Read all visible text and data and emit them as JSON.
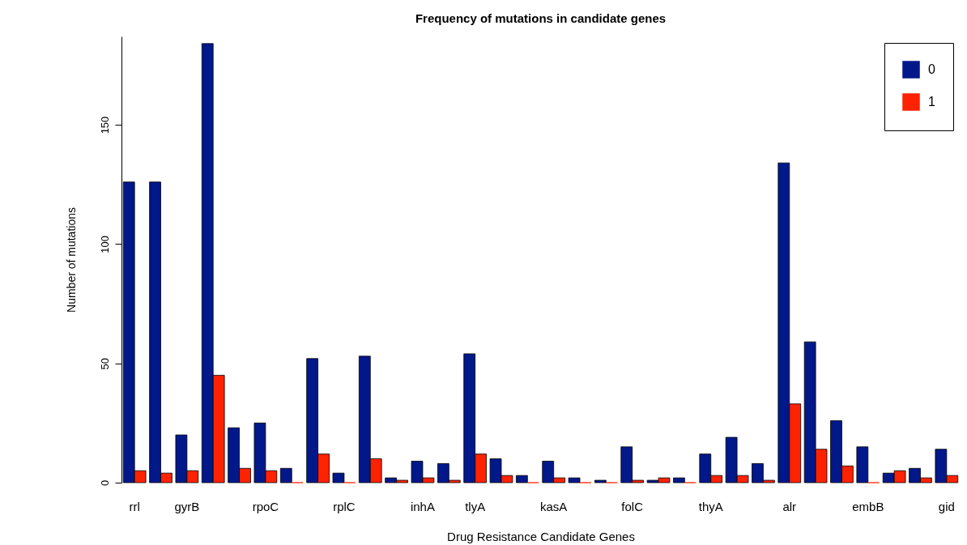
{
  "chart_data": {
    "type": "bar",
    "title": "Frequency of mutations in candidate genes",
    "xlabel": "Drug Resistance Candidate Genes",
    "ylabel": "Number of mutations",
    "categories": [
      "rrl",
      null,
      "gyrB",
      null,
      null,
      "rpoC",
      null,
      null,
      "rplC",
      null,
      null,
      "inhA",
      null,
      "tlyA",
      null,
      null,
      "kasA",
      null,
      null,
      "folC",
      null,
      null,
      "thyA",
      null,
      null,
      "alr",
      null,
      null,
      "embB",
      null,
      null,
      "gid"
    ],
    "series": [
      {
        "name": "0",
        "color": "#00188a",
        "values": [
          126,
          126,
          20,
          184,
          23,
          25,
          6,
          52,
          4,
          53,
          2,
          9,
          8,
          54,
          10,
          3,
          9,
          2,
          1,
          15,
          1,
          2,
          12,
          19,
          8,
          134,
          59,
          26,
          15,
          4,
          6,
          14
        ]
      },
      {
        "name": "1",
        "color": "#ff2200",
        "values": [
          5,
          4,
          5,
          45,
          6,
          5,
          0,
          12,
          0,
          10,
          1,
          2,
          1,
          12,
          3,
          0,
          2,
          0,
          0,
          1,
          2,
          0,
          3,
          3,
          1,
          33,
          14,
          7,
          0,
          5,
          2,
          3
        ]
      }
    ],
    "ylim": [
      0,
      187
    ],
    "yticks": [
      0,
      50,
      100,
      150
    ],
    "grid": false,
    "legend": "top right"
  }
}
